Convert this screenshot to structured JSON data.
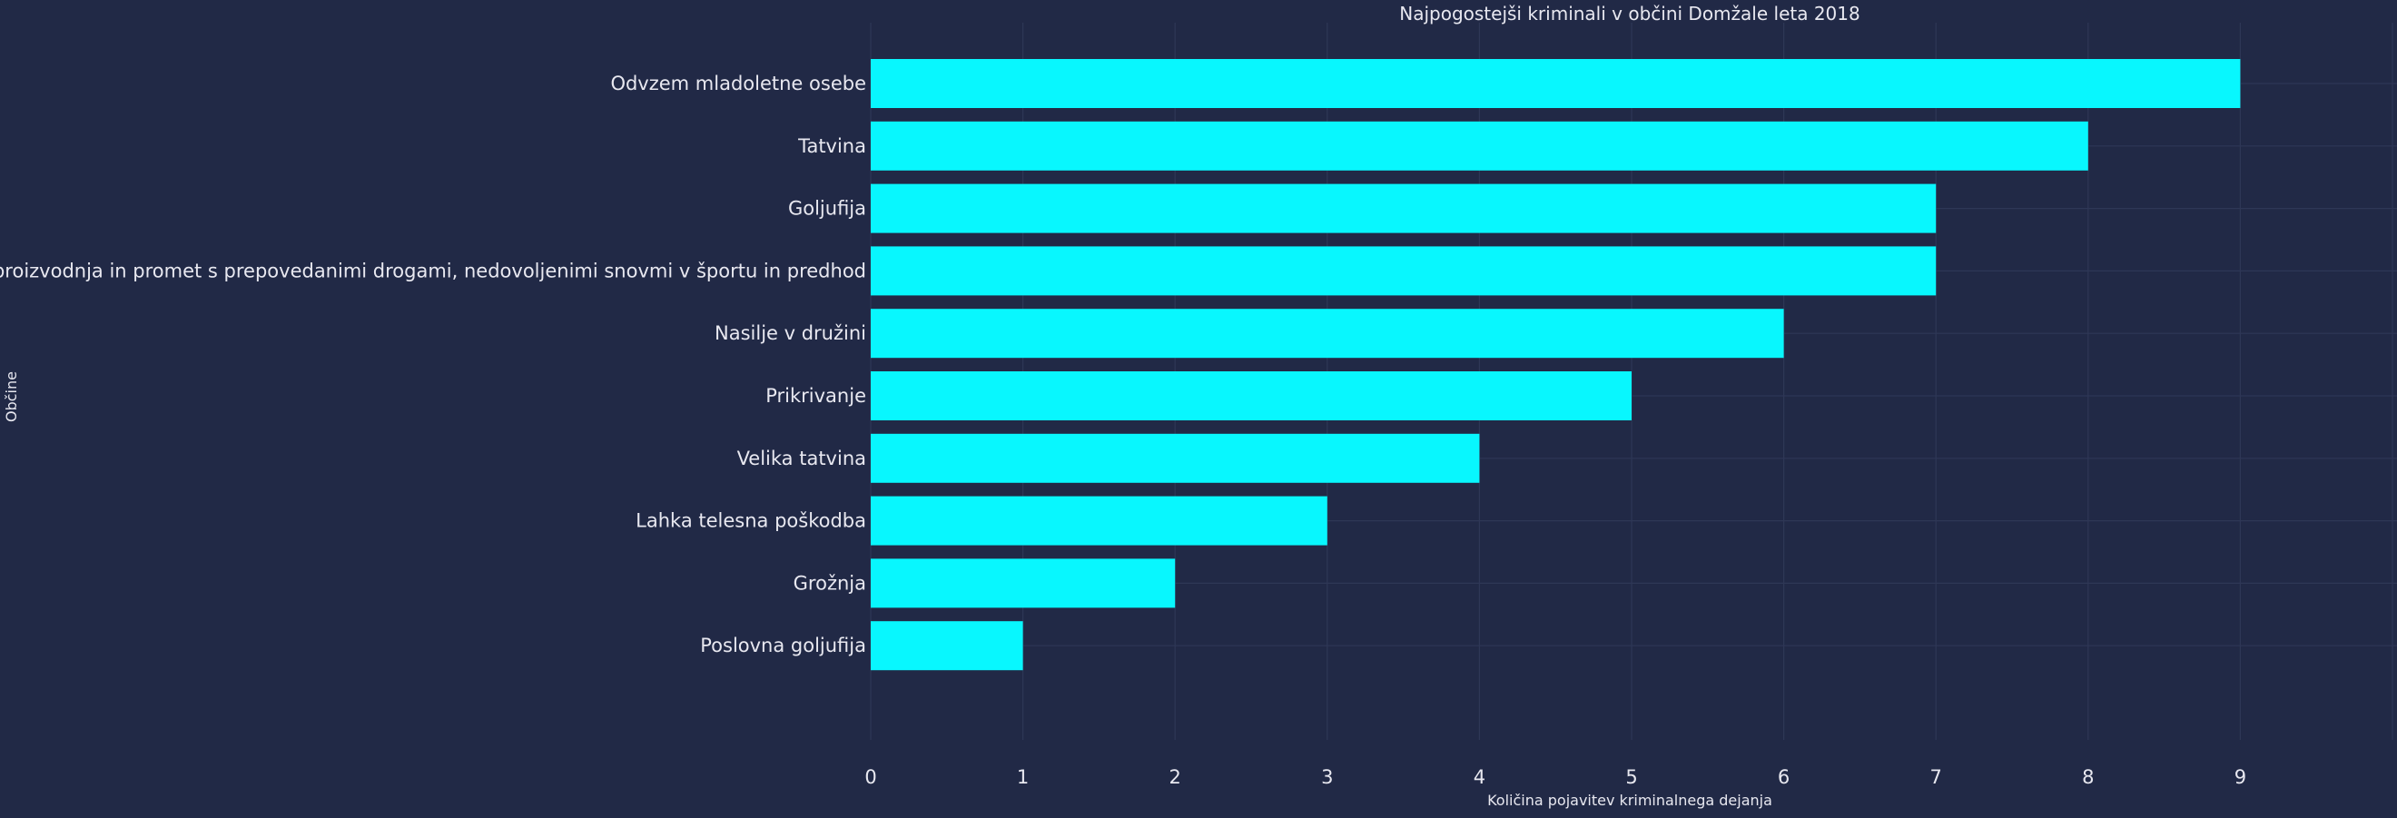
{
  "chart_data": {
    "type": "bar",
    "orientation": "horizontal",
    "title": "Najpogostejši kriminali v občini  Domžale leta 2018",
    "xlabel": "Količina pojavitev kriminalnega dejanja",
    "ylabel": "Občine",
    "categories": [
      "Odvzem mladoletne osebe",
      "Tatvina",
      "Goljufija",
      "Neupravičena proizvodnja in promet s prepovedanimi drogami, nedovoljenimi snovmi v športu in predhod",
      "Nasilje v družini",
      "Prikrivanje",
      "Velika tatvina",
      "Lahka telesna poškodba",
      "Grožnja",
      "Poslovna goljufija"
    ],
    "values": [
      9,
      8,
      7,
      7,
      6,
      5,
      4,
      3,
      2,
      1
    ],
    "xlim": [
      0,
      10
    ],
    "xticks": [
      0,
      1,
      2,
      3,
      4,
      5,
      6,
      7,
      8,
      9
    ],
    "grid": true,
    "colors": {
      "background": "#212946",
      "bar": "#08F7FE",
      "grid": "#2E3756",
      "text": "#E8E8F0"
    }
  }
}
